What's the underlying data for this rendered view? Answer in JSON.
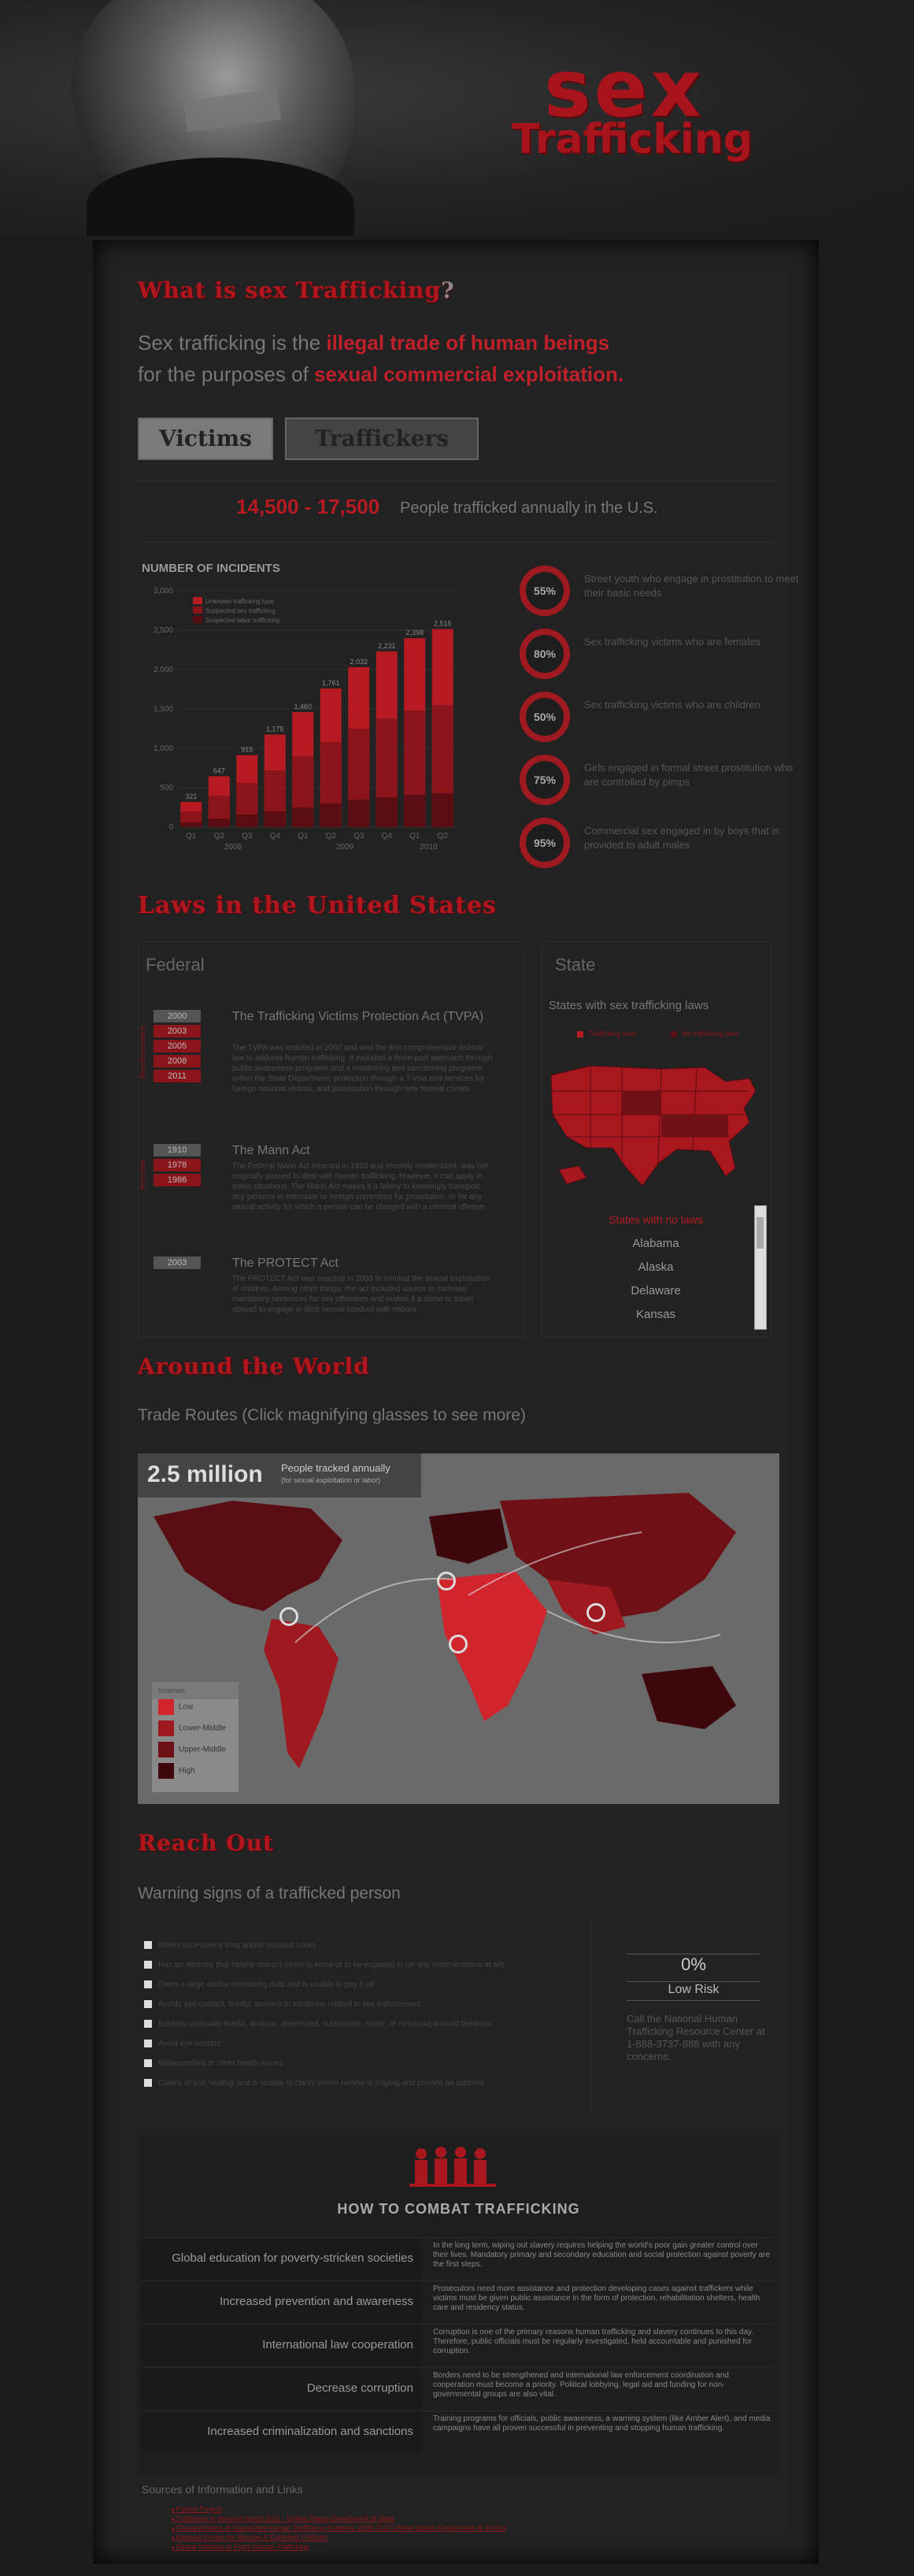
{
  "logo": {
    "line1": "sex",
    "line2": "Trafficking"
  },
  "what": {
    "heading": "What is sex Trafficking",
    "qmark": "?",
    "intro_a": "Sex trafficking is the ",
    "intro_b": "illegal trade of human beings",
    "intro_c": "for the purposes of ",
    "intro_d": "sexual commercial exploitation."
  },
  "tabs": {
    "victims": "Victims",
    "traffickers": "Traffickers"
  },
  "stat": {
    "range": "14,500 - 17,500",
    "text": "People trafficked annually in the U.S."
  },
  "chart_data": {
    "type": "bar",
    "title": "NUMBER OF INCIDENTS",
    "categories": [
      "Q1",
      "Q2",
      "Q3",
      "Q4",
      "Q1",
      "Q2",
      "Q3",
      "Q4",
      "Q1",
      "Q2"
    ],
    "years": [
      {
        "label": "2008",
        "span": [
          0,
          3
        ]
      },
      {
        "label": "2009",
        "span": [
          4,
          7
        ]
      },
      {
        "label": "2010",
        "span": [
          8,
          9
        ]
      }
    ],
    "series": [
      {
        "name": "Unknown trafficking type",
        "values": [
          321,
          647,
          915,
          1175,
          1460,
          1761,
          2032,
          2231,
          2398,
          2515
        ]
      },
      {
        "name": "Suspected sex trafficking",
        "values": [
          200,
          400,
          560,
          720,
          900,
          1080,
          1250,
          1380,
          1480,
          1550
        ]
      },
      {
        "name": "Suspected labor trafficking",
        "values": [
          60,
          110,
          160,
          200,
          250,
          300,
          350,
          380,
          410,
          430
        ]
      }
    ],
    "data_labels": [
      "321",
      "647",
      "915",
      "1,175",
      "1,460",
      "1,761",
      "2,032",
      "2,231",
      "2,398",
      "2,515"
    ],
    "yticks": [
      "0",
      "500",
      "1,000",
      "1,500",
      "2,000",
      "2,500",
      "3,000"
    ],
    "ylim": [
      0,
      3000
    ],
    "colors": [
      "#b81a22",
      "#8a141a",
      "#5a0d12"
    ]
  },
  "facts": [
    {
      "pct": "55%",
      "value": 0.55,
      "text": "Street youth who engage in prostitution to meet their basic needs"
    },
    {
      "pct": "80%",
      "value": 0.8,
      "text": "Sex trafficking victims who are females"
    },
    {
      "pct": "50%",
      "value": 0.5,
      "text": "Sex trafficking victims who are children"
    },
    {
      "pct": "75%",
      "value": 0.75,
      "text": "Girls engaged in formal street prostitution who are controlled by pimps"
    },
    {
      "pct": "95%",
      "value": 0.95,
      "text": "Commercial sex engaged in by boys that is provided to adult males"
    }
  ],
  "laws": {
    "heading": "Laws in the United States",
    "federal_title": "Federal",
    "state_title": "State",
    "acts": [
      {
        "years": [
          "2000",
          "2003",
          "2005",
          "2008",
          "2011"
        ],
        "side": "Reauthorizations",
        "name": "The Trafficking Victims Protection Act (TVPA)",
        "desc": "The TVPA was enacted in 2000 and was the first comprehensive federal law to address human trafficking. It included a three-part approach through public awareness programs and a monitoring and sanctioning programs within the State Department, protection through a T-visa and services for foreign national victims, and prosecution through new federal crimes."
      },
      {
        "years": [
          "1910",
          "1978",
          "1986"
        ],
        "side": "Amended",
        "name": "The Mann Act",
        "desc": "The Federal Mann Act enacted in 1910 and recently modernized, was not originally passed to deal with human trafficking. However, it can apply in some situations. The Mann Act makes it a felony to knowingly transport any persons in interstate or foreign commerce for prostitution, or for any sexual activity for which a person can be charged with a criminal offense."
      },
      {
        "years": [
          "2003"
        ],
        "side": "",
        "name": "The PROTECT Act",
        "desc": "The PROTECT Act was enacted in 2003 to combat the sexual exploitation of children. Among other things, the act included source to increase mandatory sentences for sex offenders and makes it a crime to travel abroad to engage in illicit sexual conduct with minors."
      }
    ],
    "states_with_laws": "States with sex trafficking laws",
    "legend_laws": "Trafficking laws",
    "legend_none": "No trafficking laws",
    "no_laws_title": "States with no laws",
    "no_laws": [
      "Alabama",
      "Alaska",
      "Delaware",
      "Kansas"
    ]
  },
  "world": {
    "heading": "Around the World",
    "trade_title": "Trade Routes (Click magnifying glasses to see more)",
    "big": "2.5 million",
    "big_text": "People tracked annually",
    "big_sub": "(for sexual exploitation or labor)",
    "legend_title": "Incomes",
    "legend": [
      {
        "label": "Low",
        "color": "#d0252d"
      },
      {
        "label": "Lower-Middle",
        "color": "#9e1a20"
      },
      {
        "label": "Upper-Middle",
        "color": "#6e1015"
      },
      {
        "label": "High",
        "color": "#3e070b"
      }
    ]
  },
  "reach": {
    "heading": "Reach Out",
    "warn_title": "Warning signs of a trafficked person",
    "signs": [
      "Works excessively long and/or unusual hours",
      "Has an attorney that he/she doesn't seem to know or to be engaged in (or any representation at all)",
      "Owes a large and/or increasing debt and is unable to pay it off",
      "Avoids eye contact, fearful, anxious in situations related to law enforcement",
      "Exhibits unusually fearful, anxious, depressed, submissive, tense, or nervous/paranoid behavior",
      "Avoid eye contact",
      "Malnourished or other health issues",
      "Claims of just 'visiting' and is unable to clarify where he/she is staying and provide an address"
    ],
    "risk_pct": "0%",
    "risk_label": "Low Risk",
    "call": "Call the National Human Trafficking Resource Center at 1-888-3737-888 with any concerns."
  },
  "combat": {
    "title": "HOW TO COMBAT TRAFFICKING",
    "rows": [
      {
        "label": "Global education for poverty-stricken societies",
        "text": "In the long term, wiping out slavery requires helping the world's poor gain greater control over their lives. Mandatory primary and secondary education and social protection against poverty are the first steps."
      },
      {
        "label": "Increased prevention and awareness",
        "text": "Prosecutors need more assistance and protection developing cases against traffickers while victims must be given public assistance in the form of protection, rehabilitation shelters, health care and residency status."
      },
      {
        "label": "International law cooperation",
        "text": "Corruption is one of the primary reasons human trafficking and slavery continues to this day. Therefore, public officials must be regularly investigated, held accountable and punished for corruption."
      },
      {
        "label": "Decrease corruption",
        "text": "Borders need to be strengthened and international law enforcement coordination and cooperation must become a priority. Political lobbying, legal aid and funding for non-governmental groups are also vital."
      },
      {
        "label": "Increased criminalization and sanctions",
        "text": "Training programs for officials, public awareness, a warning system (like Amber Alert), and media campaigns have all proven successful in preventing and stopping human trafficking."
      }
    ]
  },
  "sources": {
    "title": "Sources of Information and Links",
    "links": [
      "Polaris Project",
      "Trafficking in persons report 2011 - United States Department of State",
      "Characteristics of Suspected Human Trafficking Incidents 2008-2010 United States Department of Justice",
      "National Center for Missing & Exploited Children",
      "Global Initiative to Fight Human Trafficking"
    ]
  }
}
